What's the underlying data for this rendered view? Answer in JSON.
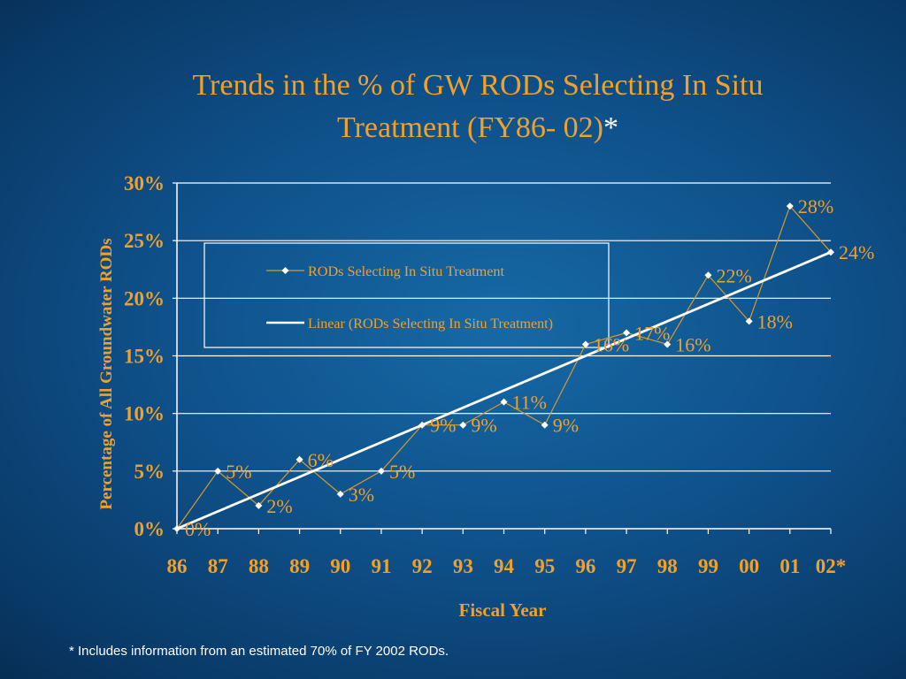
{
  "title": {
    "line1": "Trends in the % of GW RODs Selecting In Situ",
    "line2": "Treatment (FY86- 02)",
    "asterisk": "*"
  },
  "footnote": "* Includes information from an estimated 70% of FY 2002 RODs.",
  "colors": {
    "title": "#f0a12a",
    "axis_text": "#f0a12a",
    "data_line": "#d89a2a",
    "trend_line": "#ffffff",
    "marker": "#ffffff",
    "grid": "#ffffff"
  },
  "chart_data": {
    "type": "line",
    "categories": [
      "86",
      "87",
      "88",
      "89",
      "90",
      "91",
      "92",
      "93",
      "94",
      "95",
      "96",
      "97",
      "98",
      "99",
      "00",
      "01",
      "02*"
    ],
    "series": [
      {
        "name": "RODs Selecting In Situ Treatment",
        "values": [
          0,
          5,
          2,
          6,
          3,
          5,
          9,
          9,
          11,
          9,
          16,
          17,
          16,
          22,
          18,
          28,
          24
        ],
        "labels": [
          "0%",
          "5%",
          "2%",
          "6%",
          "3%",
          "5%",
          "9%",
          "9%",
          "11%",
          "9%",
          "16%",
          "17%",
          "16%",
          "22%",
          "18%",
          "28%",
          "24%"
        ]
      },
      {
        "name": "Linear (RODs Selecting In Situ Treatment)",
        "type": "trendline",
        "values": [
          0,
          1.5,
          3.0,
          4.5,
          6.0,
          7.5,
          9.0,
          10.5,
          12.0,
          13.5,
          15.0,
          16.5,
          18.0,
          19.5,
          21.0,
          22.5,
          24.0
        ]
      }
    ],
    "ylim": [
      0,
      30
    ],
    "yticks": [
      "0%",
      "5%",
      "10%",
      "15%",
      "20%",
      "25%",
      "30%"
    ],
    "ytick_values": [
      0,
      5,
      10,
      15,
      20,
      25,
      30
    ],
    "xlabel": "Fiscal Year",
    "ylabel": "Percentage of All Groundwater RODs",
    "grid": true,
    "legend": "upper-left"
  }
}
